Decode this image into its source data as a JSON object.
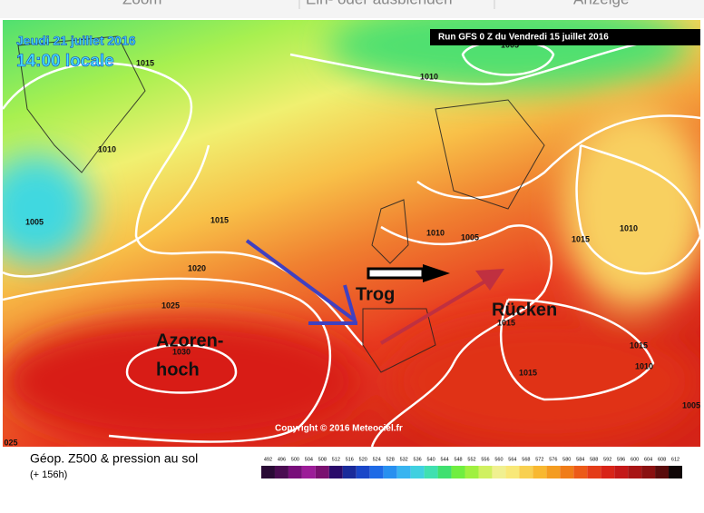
{
  "toolbar": {
    "items": [
      "Zoom",
      "Ein- oder ausblenden",
      "Anzeige"
    ]
  },
  "map": {
    "date": "Jeudi 21 juillet 2016",
    "time": "14:00 locale",
    "run": "Run GFS 0 Z du Vendredi 15 juillet 2016",
    "annotations": [
      "Trog",
      "Rücken",
      "Azoren-",
      "hoch"
    ],
    "copyright": "Copyright © 2016 Meteociel.fr",
    "isobar_labels": [
      "1015",
      "1010",
      "1005",
      "1010",
      "1005",
      "1015",
      "1020",
      "1025",
      "1030",
      "1010",
      "1005",
      "1015",
      "1010",
      "1015",
      "1015",
      "1010",
      "1015",
      "1005",
      "025"
    ]
  },
  "legend": {
    "title": "Géop. Z500 & pression au sol",
    "subtitle": "(+ 156h)",
    "values": [
      492,
      496,
      500,
      504,
      508,
      512,
      516,
      520,
      524,
      528,
      532,
      536,
      540,
      544,
      548,
      552,
      556,
      560,
      564,
      568,
      572,
      576,
      580,
      584,
      588,
      592,
      596,
      600,
      604,
      608,
      612
    ],
    "colors": [
      "#2a0a36",
      "#4a0c52",
      "#780e7a",
      "#9c1c98",
      "#7a1070",
      "#2a0a6a",
      "#1a2a9a",
      "#1a46c8",
      "#1e6ae6",
      "#2890f0",
      "#38b4f0",
      "#40d0e0",
      "#40e0b0",
      "#40e070",
      "#70ee40",
      "#a0f040",
      "#d0f060",
      "#f0f090",
      "#f8e878",
      "#f8d050",
      "#f8b830",
      "#f49c20",
      "#f07c18",
      "#ec5a18",
      "#e43c18",
      "#d82418",
      "#c41818",
      "#a81414",
      "#8a1010",
      "#5a0c0c",
      "#100606"
    ]
  }
}
